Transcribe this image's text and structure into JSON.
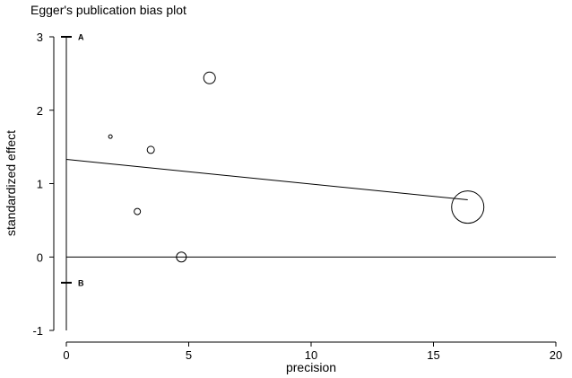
{
  "chart_data": {
    "type": "scatter",
    "title": "Egger's publication bias plot",
    "xlabel": "precision",
    "ylabel": "standardized effect",
    "xlim": [
      0,
      20
    ],
    "ylim": [
      -1,
      3
    ],
    "xticks": [
      0,
      5,
      10,
      15,
      20
    ],
    "yticks": [
      -1,
      0,
      1,
      2,
      3
    ],
    "grid": false,
    "points": [
      {
        "x": 1.8,
        "y": 1.64,
        "w": 2
      },
      {
        "x": 2.9,
        "y": 0.62,
        "w": 3.5
      },
      {
        "x": 3.45,
        "y": 1.46,
        "w": 4
      },
      {
        "x": 4.7,
        "y": 0.0,
        "w": 5.5
      },
      {
        "x": 5.85,
        "y": 2.44,
        "w": 6.5
      },
      {
        "x": 16.4,
        "y": 0.68,
        "w": 18
      }
    ],
    "regression_line": {
      "x": [
        0,
        16.4
      ],
      "y": [
        1.33,
        0.78
      ]
    },
    "zero_line_y": 0,
    "ci_markers": [
      {
        "label": "A",
        "y": 3.0
      },
      {
        "label": "B",
        "y": -0.35
      }
    ]
  }
}
